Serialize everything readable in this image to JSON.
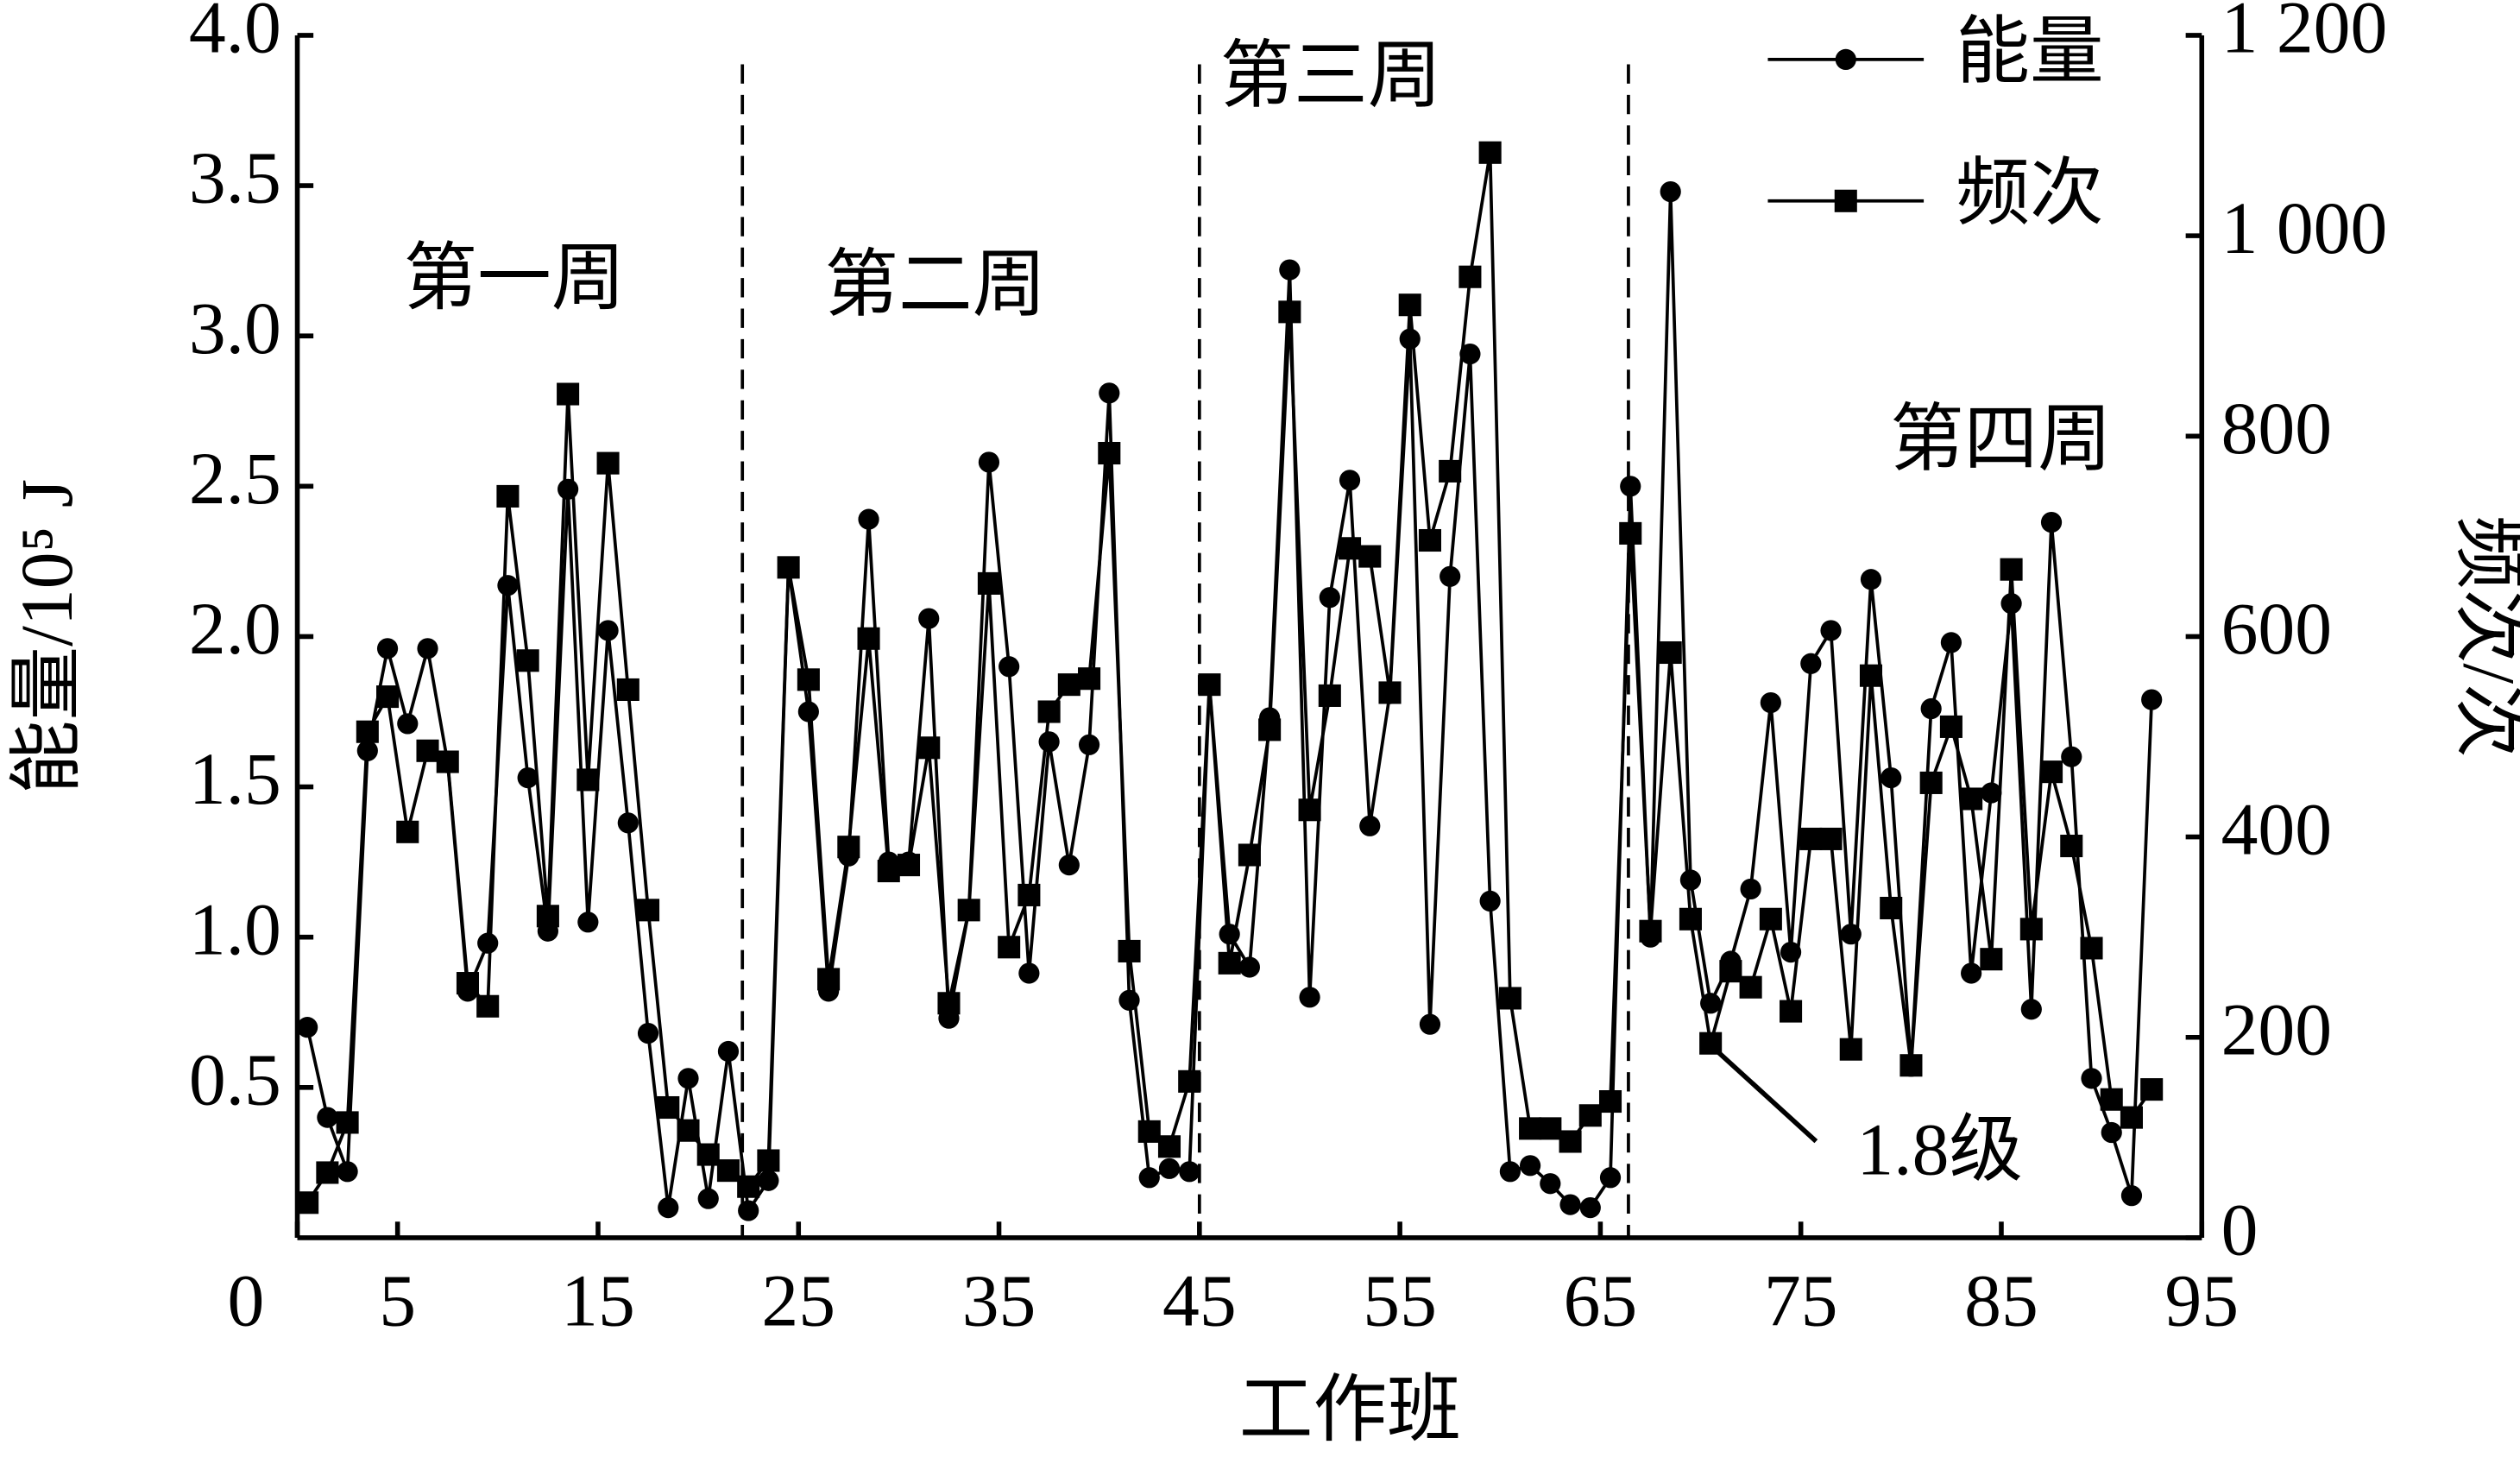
{
  "chart_data": {
    "type": "line",
    "xlabel": "工作班",
    "ylabel": "能量/10⁵ J",
    "y2label": "频次/次",
    "x": [
      0.5,
      1.5,
      2.5,
      3.5,
      4.5,
      5.5,
      6.5,
      7.5,
      8.5,
      9.5,
      10.5,
      11.5,
      12.5,
      13.5,
      14.5,
      15.5,
      16.5,
      17.5,
      18.5,
      19.5,
      20.5,
      21.5,
      22.5,
      23.5,
      24.5,
      25.5,
      26.5,
      27.5,
      28.5,
      29.5,
      30.5,
      31.5,
      32.5,
      33.5,
      34.5,
      35.5,
      36.5,
      37.5,
      38.5,
      39.5,
      40.5,
      41.5,
      42.5,
      43.5,
      44.5,
      45.5,
      46.5,
      47.5,
      48.5,
      49.5,
      50.5,
      51.5,
      52.5,
      53.5,
      54.5,
      55.5,
      56.5,
      57.5,
      58.5,
      59.5,
      60.5,
      61.5,
      62.5,
      63.5,
      64.5,
      65.5,
      66.5,
      67.5,
      68.5,
      69.5,
      70.5,
      71.5,
      72.5,
      73.5,
      74.5,
      75.5,
      76.5,
      77.5,
      78.5,
      79.5,
      80.5,
      81.5,
      82.5,
      83.5,
      84.5,
      85.5,
      86.5,
      87.5,
      88.5,
      89.5,
      90.5,
      91.5,
      92.5
    ],
    "xlim": [
      0,
      95
    ],
    "xticks": [
      0,
      5,
      15,
      25,
      35,
      45,
      55,
      65,
      75,
      85,
      95
    ],
    "ylim": [
      0,
      4
    ],
    "yticks": [
      0.5,
      {
        "value": 1,
        "label": "1.0"
      },
      1.5,
      {
        "value": 2,
        "label": "2.0"
      },
      2.5,
      {
        "value": 3,
        "label": "3.0"
      },
      3.5,
      {
        "value": 4,
        "label": "4.0"
      }
    ],
    "y2lim": [
      0,
      1200
    ],
    "y2ticks": [
      0,
      200,
      400,
      600,
      800,
      {
        "value": 1000,
        "label": "1 000"
      },
      {
        "value": 1200,
        "label": "1 200"
      }
    ],
    "legend": "upper right",
    "series": [
      {
        "name": "能量",
        "color": "#000000",
        "marker": "circle",
        "values": [
          0.7,
          0.4,
          0.22,
          1.62,
          1.96,
          1.71,
          1.96,
          1.58,
          0.82,
          0.98,
          2.17,
          1.53,
          1.02,
          2.49,
          1.05,
          2.02,
          1.38,
          0.68,
          0.1,
          0.53,
          0.13,
          0.62,
          0.09,
          0.19,
          2.23,
          1.75,
          0.82,
          1.27,
          2.39,
          1.25,
          1.25,
          2.06,
          0.73,
          1.09,
          2.58,
          1.9,
          0.88,
          1.65,
          1.24,
          1.64,
          2.81,
          0.79,
          0.2,
          0.23,
          0.22,
          1.84,
          1.01,
          0.9,
          1.73,
          3.22,
          0.8,
          2.13,
          2.52,
          1.37,
          1.81,
          2.99,
          0.71,
          2.2,
          2.94,
          1.12,
          0.22,
          0.24,
          0.18,
          0.11,
          0.1,
          0.2,
          2.5,
          1.0,
          3.48,
          1.19,
          0.78,
          0.92,
          1.16,
          1.78,
          0.95,
          1.91,
          2.02,
          1.01,
          2.19,
          1.53,
          0.57,
          1.76,
          1.98,
          0.88,
          1.48,
          2.11,
          0.76,
          2.38,
          1.6,
          0.53,
          0.35,
          0.14,
          1.79
        ]
      },
      {
        "name": "频次",
        "color": "#000000",
        "marker": "square",
        "axis": "y2",
        "values": [
          35,
          65,
          115,
          505,
          540,
          405,
          486,
          475,
          254,
          231,
          740,
          576,
          321,
          842,
          457,
          773,
          547,
          327,
          130,
          107,
          83,
          67,
          51,
          77,
          669,
          557,
          258,
          390,
          598,
          366,
          372,
          489,
          234,
          327,
          653,
          290,
          342,
          525,
          552,
          558,
          783,
          286,
          106,
          91,
          156,
          552,
          274,
          382,
          507,
          924,
          427,
          541,
          688,
          680,
          544,
          931,
          696,
          765,
          959,
          1083,
          239,
          109,
          109,
          96,
          122,
          136,
          703,
          306,
          584,
          318,
          194,
          266,
          250,
          318,
          226,
          398,
          398,
          188,
          561,
          329,
          172,
          454,
          510,
          438,
          278,
          667,
          308,
          465,
          391,
          289,
          138,
          120,
          148
        ]
      }
    ],
    "period_dividers": [
      22.2,
      45,
      66.4
    ],
    "period_labels": [
      "第一周",
      "第二周",
      "第三周",
      "第四周"
    ],
    "annotations": [
      {
        "text": "1.8级"
      }
    ]
  }
}
